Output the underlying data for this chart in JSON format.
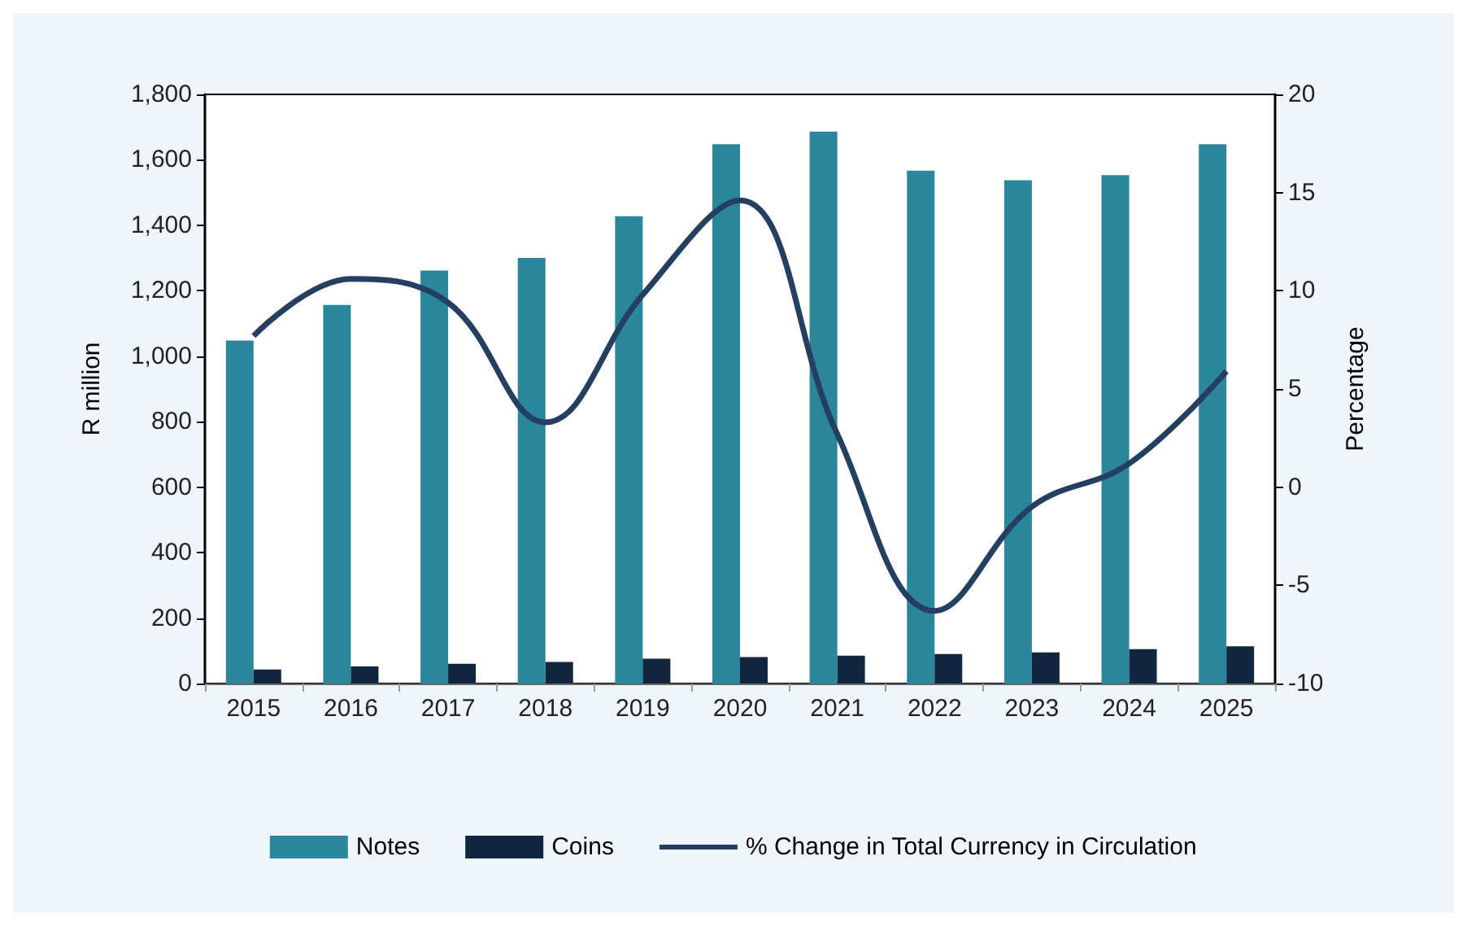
{
  "chart_data": {
    "type": "bar",
    "categories": [
      "2015",
      "2016",
      "2017",
      "2018",
      "2019",
      "2020",
      "2021",
      "2022",
      "2023",
      "2024",
      "2025"
    ],
    "series": [
      {
        "name": "Notes",
        "color": "#2b869b",
        "values": [
          1048,
          1157,
          1262,
          1300,
          1428,
          1648,
          1686,
          1567,
          1538,
          1553,
          1648
        ]
      },
      {
        "name": "Coins",
        "color": "#12263f",
        "values": [
          43,
          52,
          60,
          66,
          76,
          81,
          85,
          90,
          95,
          105,
          114
        ]
      },
      {
        "name": "% Change in Total Currency in Circulation",
        "type": "line",
        "axis": "y2",
        "color": "#243f60",
        "values": [
          7.7,
          10.6,
          9.4,
          3.3,
          9.8,
          14.6,
          2.7,
          -6.3,
          -1.0,
          1.2,
          5.9
        ]
      }
    ],
    "ylabel": "R million",
    "y2label": "Percentage",
    "ylim": [
      0,
      1800
    ],
    "yticks": [
      0,
      200,
      400,
      600,
      800,
      {
        "value": 1000,
        "label": "1,000"
      },
      {
        "value": 1200,
        "label": "1,200"
      },
      {
        "value": 1400,
        "label": "1,400"
      },
      {
        "value": 1600,
        "label": "1,600"
      },
      {
        "value": 1800,
        "label": "1,800"
      }
    ],
    "y2lim": [
      -10,
      20
    ],
    "y2ticks": [
      -10,
      -5,
      0,
      5,
      10,
      15,
      20
    ],
    "grid": false,
    "legend": "bottom",
    "marker": "none"
  }
}
